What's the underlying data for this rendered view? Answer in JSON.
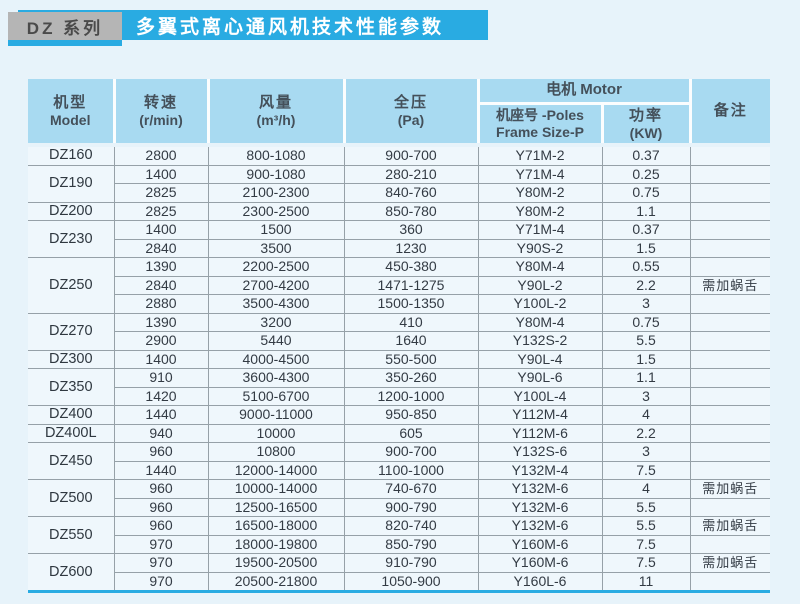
{
  "title": {
    "series_label": "DZ 系列",
    "banner_text": "多翼式离心通风机技术性能参数"
  },
  "colors": {
    "accent_blue": "#29abe2",
    "tab_gray": "#b5b5b5",
    "header_bg": "#a8daf1",
    "row_bg": "#eff7fc",
    "page_bg": "#e7f3fa"
  },
  "table": {
    "header": {
      "model_zh": "机型",
      "model_en": "Model",
      "speed_zh": "转速",
      "speed_en": "(r/min)",
      "airflow_zh": "风量",
      "airflow_en": "(m³/h)",
      "pressure_zh": "全压",
      "pressure_en": "(Pa)",
      "motor": "电机 Motor",
      "frame_line1": "机座号 -Poles",
      "frame_line2": "Frame Size-P",
      "power_zh": "功率",
      "power_en": "(KW)",
      "remark": "备注"
    },
    "columns": [
      "model",
      "speed",
      "airflow",
      "pressure",
      "frame",
      "power",
      "remark"
    ],
    "groups": [
      {
        "model": "DZ160",
        "rows": [
          [
            "2800",
            "800-1080",
            "900-700",
            "Y71M-2",
            "0.37",
            ""
          ]
        ]
      },
      {
        "model": "DZ190",
        "rows": [
          [
            "1400",
            "900-1080",
            "280-210",
            "Y71M-4",
            "0.25",
            ""
          ],
          [
            "2825",
            "2100-2300",
            "840-760",
            "Y80M-2",
            "0.75",
            ""
          ]
        ]
      },
      {
        "model": "DZ200",
        "rows": [
          [
            "2825",
            "2300-2500",
            "850-780",
            "Y80M-2",
            "1.1",
            ""
          ]
        ]
      },
      {
        "model": "DZ230",
        "rows": [
          [
            "1400",
            "1500",
            "360",
            "Y71M-4",
            "0.37",
            ""
          ],
          [
            "2840",
            "3500",
            "1230",
            "Y90S-2",
            "1.5",
            ""
          ]
        ]
      },
      {
        "model": "DZ250",
        "rows": [
          [
            "1390",
            "2200-2500",
            "450-380",
            "Y80M-4",
            "0.55",
            ""
          ],
          [
            "2840",
            "2700-4200",
            "1471-1275",
            "Y90L-2",
            "2.2",
            "需加蜗舌"
          ],
          [
            "2880",
            "3500-4300",
            "1500-1350",
            "Y100L-2",
            "3",
            ""
          ]
        ]
      },
      {
        "model": "DZ270",
        "rows": [
          [
            "1390",
            "3200",
            "410",
            "Y80M-4",
            "0.75",
            ""
          ],
          [
            "2900",
            "5440",
            "1640",
            "Y132S-2",
            "5.5",
            ""
          ]
        ]
      },
      {
        "model": "DZ300",
        "rows": [
          [
            "1400",
            "4000-4500",
            "550-500",
            "Y90L-4",
            "1.5",
            ""
          ]
        ]
      },
      {
        "model": "DZ350",
        "rows": [
          [
            "910",
            "3600-4300",
            "350-260",
            "Y90L-6",
            "1.1",
            ""
          ],
          [
            "1420",
            "5100-6700",
            "1200-1000",
            "Y100L-4",
            "3",
            ""
          ]
        ]
      },
      {
        "model": "DZ400",
        "rows": [
          [
            "1440",
            "9000-11000",
            "950-850",
            "Y112M-4",
            "4",
            ""
          ]
        ]
      },
      {
        "model": "DZ400L",
        "rows": [
          [
            "940",
            "10000",
            "605",
            "Y112M-6",
            "2.2",
            ""
          ]
        ]
      },
      {
        "model": "DZ450",
        "rows": [
          [
            "960",
            "10800",
            "900-700",
            "Y132S-6",
            "3",
            ""
          ],
          [
            "1440",
            "12000-14000",
            "1100-1000",
            "Y132M-4",
            "7.5",
            ""
          ]
        ]
      },
      {
        "model": "DZ500",
        "rows": [
          [
            "960",
            "10000-14000",
            "740-670",
            "Y132M-6",
            "4",
            "需加蜗舌"
          ],
          [
            "960",
            "12500-16500",
            "900-790",
            "Y132M-6",
            "5.5",
            ""
          ]
        ]
      },
      {
        "model": "DZ550",
        "rows": [
          [
            "960",
            "16500-18000",
            "820-740",
            "Y132M-6",
            "5.5",
            "需加蜗舌"
          ],
          [
            "970",
            "18000-19800",
            "850-790",
            "Y160M-6",
            "7.5",
            ""
          ]
        ]
      },
      {
        "model": "DZ600",
        "rows": [
          [
            "970",
            "19500-20500",
            "910-790",
            "Y160M-6",
            "7.5",
            "需加蜗舌"
          ],
          [
            "970",
            "20500-21800",
            "1050-900",
            "Y160L-6",
            "11",
            ""
          ]
        ]
      }
    ]
  }
}
